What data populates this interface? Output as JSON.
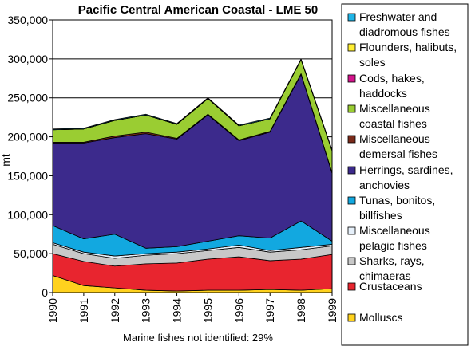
{
  "chart_data": {
    "type": "area",
    "stacked": true,
    "title": "Pacific Central American Coastal - LME 50",
    "ylabel": "mt",
    "footnote": "Marine fishes not identified: 29%",
    "x": [
      "1990",
      "1991",
      "1992",
      "1993",
      "1994",
      "1995",
      "1996",
      "1997",
      "1998",
      "1999"
    ],
    "ylim": [
      0,
      350000
    ],
    "yticks": [
      0,
      50000,
      100000,
      150000,
      200000,
      250000,
      300000,
      350000
    ],
    "ytick_labels": [
      "0",
      "50,000",
      "100,000",
      "150,000",
      "200,000",
      "250,000",
      "300,000",
      "350,000"
    ],
    "grid": true,
    "legend_position": "right",
    "series": [
      {
        "name": "Molluscs",
        "color": "#FFD21E",
        "values": [
          22000,
          9000,
          6000,
          3000,
          2000,
          3000,
          3000,
          4000,
          3000,
          5000
        ]
      },
      {
        "name": "Crustaceans",
        "color": "#E8252F",
        "values": [
          28000,
          31000,
          28000,
          34000,
          36000,
          40000,
          43000,
          37000,
          40000,
          44000
        ]
      },
      {
        "name": "Sharks, rays, chimaeras",
        "color": "#C8C8C8",
        "values": [
          12000,
          10000,
          10000,
          11000,
          12000,
          11000,
          12000,
          11000,
          12000,
          11000
        ]
      },
      {
        "name": "Miscellaneous pelagic fishes",
        "color": "#E6F0FA",
        "values": [
          2000,
          2000,
          3000,
          2000,
          2000,
          2000,
          3000,
          2000,
          3000,
          2000
        ]
      },
      {
        "name": "Tunas, bonitos, billfishes",
        "color": "#12A8E0",
        "values": [
          22000,
          17000,
          28000,
          7000,
          7000,
          10000,
          12000,
          16000,
          34000,
          4000
        ]
      },
      {
        "name": "Herrings, sardines, anchovies",
        "color": "#3C2A8C",
        "values": [
          106000,
          123000,
          124000,
          147000,
          138000,
          162000,
          122000,
          136000,
          188000,
          87000
        ]
      },
      {
        "name": "Miscellaneous demersal fishes",
        "color": "#7A2A1A",
        "values": [
          1000,
          1000,
          2000,
          2000,
          1000,
          1000,
          1000,
          1000,
          1000,
          1000
        ]
      },
      {
        "name": "Miscellaneous coastal fishes",
        "color": "#9ACD32",
        "values": [
          16000,
          17000,
          20000,
          22000,
          18000,
          20000,
          18000,
          16000,
          18000,
          28000
        ]
      },
      {
        "name": "Cods, hakes, haddocks",
        "color": "#D4148C",
        "values": [
          0,
          0,
          0,
          0,
          0,
          0,
          0,
          0,
          0,
          0
        ]
      },
      {
        "name": "Flounders, halibuts, soles",
        "color": "#FFEE33",
        "values": [
          0,
          0,
          0,
          0,
          0,
          0,
          0,
          0,
          0,
          0
        ]
      },
      {
        "name": "Freshwater and diadromous fishes",
        "color": "#1FB4E6",
        "values": [
          1000,
          1000,
          1000,
          1000,
          1000,
          1000,
          1000,
          1000,
          1000,
          1000
        ]
      }
    ],
    "legend_entries": [
      {
        "label": [
          "Freshwater and",
          "diadromous fishes"
        ],
        "color": "#1FB4E6"
      },
      {
        "label": [
          "Flounders, halibuts,",
          "soles"
        ],
        "color": "#FFEE33"
      },
      {
        "label": [
          "Cods, hakes,",
          "haddocks"
        ],
        "color": "#D4148C"
      },
      {
        "label": [
          "Miscellaneous",
          "coastal fishes"
        ],
        "color": "#9ACD32"
      },
      {
        "label": [
          "Miscellaneous",
          "demersal fishes"
        ],
        "color": "#7A2A1A"
      },
      {
        "label": [
          "Herrings, sardines,",
          "anchovies"
        ],
        "color": "#3C2A8C"
      },
      {
        "label": [
          "Tunas, bonitos,",
          "billfishes"
        ],
        "color": "#12A8E0"
      },
      {
        "label": [
          "Miscellaneous",
          "pelagic fishes"
        ],
        "color": "#E6F0FA"
      },
      {
        "label": [
          "Sharks, rays,",
          "chimaeras"
        ],
        "color": "#C8C8C8"
      },
      {
        "label": [
          "Crustaceans"
        ],
        "color": "#E8252F"
      },
      {
        "label": [
          "Molluscs"
        ],
        "color": "#FFD21E"
      }
    ]
  }
}
